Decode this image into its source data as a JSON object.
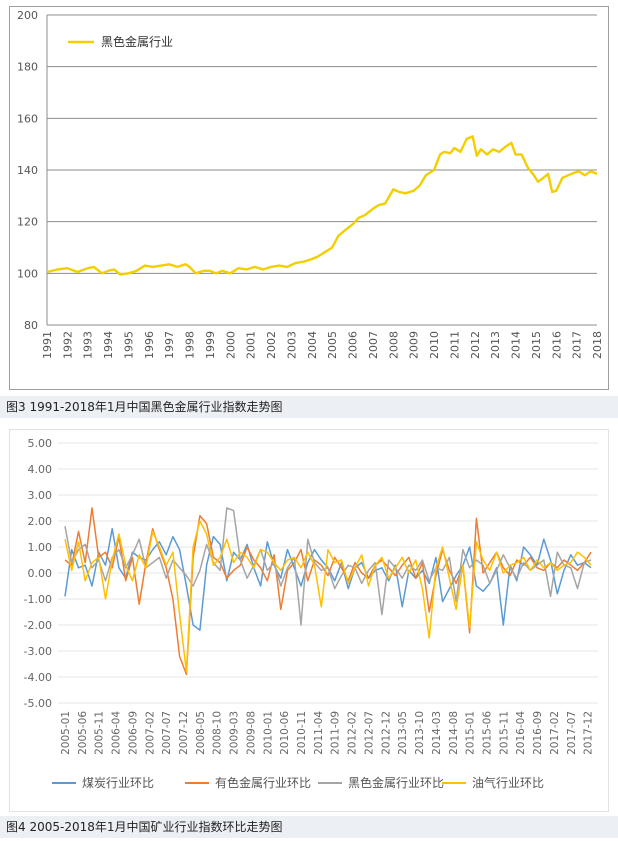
{
  "chart_data": [
    {
      "type": "line",
      "caption": "图3 1991-2018年1月中国黑色金属行业指数走势图",
      "legend": [
        "黑色金属行业"
      ],
      "legend_position": "top-left",
      "grid": true,
      "ylim": [
        80,
        200
      ],
      "yticks": [
        "80",
        "100",
        "120",
        "140",
        "160",
        "180",
        "200"
      ],
      "xticks": [
        "1991",
        "1992",
        "1993",
        "1994",
        "1995",
        "1996",
        "1997",
        "1998",
        "1999",
        "2000",
        "2001",
        "2002",
        "2003",
        "2004",
        "2005",
        "2006",
        "2007",
        "2008",
        "2009",
        "2010",
        "2011",
        "2012",
        "2013",
        "2014",
        "2015",
        "2016",
        "2017",
        "2018"
      ],
      "colors": {
        "series": "#f2cf00",
        "grid": "#8c8c8c"
      },
      "series": [
        {
          "name": "黑色金属行业",
          "x": [
            1991.0,
            1991.5,
            1992.0,
            1992.5,
            1993.0,
            1993.3,
            1993.7,
            1994.0,
            1994.3,
            1994.6,
            1995.0,
            1995.4,
            1995.8,
            1996.2,
            1996.6,
            1997.0,
            1997.4,
            1997.8,
            1998.0,
            1998.3,
            1998.7,
            1999.0,
            1999.3,
            1999.6,
            2000.0,
            2000.4,
            2000.8,
            2001.2,
            2001.6,
            2002.0,
            2002.4,
            2002.8,
            2003.2,
            2003.6,
            2004.0,
            2004.3,
            2004.6,
            2005.0,
            2005.3,
            2005.6,
            2006.0,
            2006.3,
            2006.6,
            2007.0,
            2007.3,
            2007.6,
            2008.0,
            2008.3,
            2008.6,
            2009.0,
            2009.3,
            2009.6,
            2010.0,
            2010.3,
            2010.5,
            2010.8,
            2011.0,
            2011.3,
            2011.6,
            2011.9,
            2012.1,
            2012.3,
            2012.6,
            2012.9,
            2013.2,
            2013.5,
            2013.8,
            2014.0,
            2014.3,
            2014.6,
            2014.9,
            2015.1,
            2015.3,
            2015.6,
            2015.8,
            2016.0,
            2016.3,
            2016.6,
            2016.9,
            2017.1,
            2017.4,
            2017.7,
            2018.0
          ],
          "values": [
            100.5,
            101.5,
            102,
            100.5,
            102,
            102.5,
            100,
            101,
            101.5,
            99.5,
            100,
            101,
            103,
            102.5,
            103,
            103.5,
            102.5,
            103.5,
            102.5,
            100,
            101,
            101,
            100,
            101,
            100,
            102,
            101.5,
            102.5,
            101.5,
            102.5,
            103,
            102.5,
            104,
            104.5,
            105.5,
            106.5,
            108,
            110,
            114.5,
            116.5,
            119,
            121.5,
            122.5,
            125,
            126.5,
            127,
            132.5,
            131.5,
            131,
            132,
            134,
            138,
            140,
            146,
            147,
            146.5,
            148.5,
            147,
            152,
            153,
            145.5,
            148,
            146,
            148,
            147,
            149,
            150.5,
            146,
            146,
            141,
            138,
            135.5,
            136.5,
            138.5,
            131.5,
            132,
            137,
            138,
            139,
            139.5,
            138,
            139.5,
            138.5
          ]
        }
      ]
    },
    {
      "type": "line",
      "caption": "图4 2005-2018年1月中国矿业行业指数环比走势图",
      "legend": [
        "煤炭行业环比",
        "有色金属行业环比",
        "黑色金属行业环比",
        "油气行业环比"
      ],
      "legend_position": "bottom",
      "grid": true,
      "ylim": [
        -5,
        5
      ],
      "yticks": [
        "5.00",
        "4.00",
        "3.00",
        "2.00",
        "1.00",
        "0.00",
        "-1.00",
        "-2.00",
        "-3.00",
        "-4.00",
        "-5.00"
      ],
      "xticks": [
        "2005-01",
        "2005-06",
        "2005-11",
        "2006-04",
        "2006-09",
        "2007-02",
        "2007-07",
        "2007-12",
        "2008-05",
        "2008-10",
        "2009-03",
        "2009-08",
        "2010-01",
        "2010-06",
        "2010-11",
        "2011-04",
        "2011-09",
        "2012-02",
        "2012-07",
        "2012-12",
        "2013-05",
        "2013-10",
        "2014-03",
        "2014-08",
        "2015-01",
        "2015-06",
        "2015-11",
        "2016-04",
        "2016-09",
        "2017-02",
        "2017-07",
        "2017-12"
      ],
      "colors": {
        "grid": "#e6e6e6",
        "series": [
          "#5b9bd5",
          "#ed7d31",
          "#a5a5a5",
          "#ffc000"
        ]
      },
      "series": [
        {
          "name": "煤炭行业环比",
          "x": [
            0,
            2,
            4,
            6,
            8,
            10,
            12,
            14,
            16,
            18,
            20,
            22,
            24,
            26,
            28,
            30,
            32,
            34,
            36,
            38,
            40,
            42,
            44,
            46,
            48,
            50,
            52,
            54,
            56,
            58,
            60,
            62,
            64,
            66,
            68,
            70,
            72,
            74,
            76,
            78,
            80,
            82,
            84,
            86,
            88,
            90,
            92,
            94,
            96,
            98,
            100,
            102,
            104,
            106,
            108,
            110,
            112,
            114,
            116,
            118,
            120,
            122,
            124,
            126,
            128,
            130,
            132,
            134,
            136,
            138,
            140,
            142,
            144,
            146,
            148,
            150,
            152,
            154,
            156
          ],
          "values": [
            -0.9,
            0.9,
            0.2,
            0.3,
            -0.5,
            0.8,
            0.3,
            1.7,
            0.2,
            -0.2,
            0.8,
            0.6,
            0.5,
            0.9,
            1.2,
            0.7,
            1.4,
            0.9,
            -0.5,
            -2.0,
            -2.2,
            0.3,
            1.4,
            1.1,
            -0.3,
            0.8,
            0.5,
            1.1,
            0.2,
            -0.5,
            1.2,
            0.3,
            -0.2,
            0.9,
            0.2,
            -0.5,
            0.4,
            0.9,
            0.5,
            0.2,
            -0.3,
            0.4,
            -0.6,
            0.2,
            0.4,
            -0.2,
            0.1,
            0.2,
            -0.3,
            0.3,
            -1.3,
            0.1,
            -0.2,
            0.1,
            -0.4,
            0.6,
            -1.1,
            -0.6,
            -0.1,
            0.3,
            1.0,
            -0.5,
            -0.7,
            -0.4,
            0.2,
            -2.0,
            0.3,
            -0.3,
            1.0,
            0.7,
            0.3,
            1.3,
            0.5,
            -0.8,
            0.1,
            0.7,
            0.3,
            0.4,
            0.2
          ]
        },
        {
          "name": "有色金属行业环比",
          "x": [
            0,
            2,
            4,
            6,
            8,
            10,
            12,
            14,
            16,
            18,
            20,
            22,
            24,
            26,
            28,
            30,
            32,
            34,
            36,
            38,
            40,
            42,
            44,
            46,
            48,
            50,
            52,
            54,
            56,
            58,
            60,
            62,
            64,
            66,
            68,
            70,
            72,
            74,
            76,
            78,
            80,
            82,
            84,
            86,
            88,
            90,
            92,
            94,
            96,
            98,
            100,
            102,
            104,
            106,
            108,
            110,
            112,
            114,
            116,
            118,
            120,
            122,
            124,
            126,
            128,
            130,
            132,
            134,
            136,
            138,
            140,
            142,
            144,
            146,
            148,
            150,
            152,
            154,
            156
          ],
          "values": [
            0.5,
            0.3,
            1.6,
            0.4,
            2.5,
            0.6,
            0.8,
            0.2,
            1.4,
            -0.3,
            0.6,
            -1.2,
            0.4,
            1.7,
            0.9,
            0.2,
            -1.0,
            -3.2,
            -3.9,
            0.6,
            2.2,
            1.9,
            0.6,
            0.4,
            -0.2,
            0.1,
            0.3,
            1.0,
            0.5,
            0.2,
            -0.3,
            0.7,
            -1.4,
            0.1,
            0.4,
            0.9,
            -0.3,
            0.5,
            0.3,
            -0.1,
            0.6,
            0.2,
            -0.3,
            0.4,
            0.0,
            -0.2,
            0.3,
            0.5,
            0.2,
            -0.1,
            0.3,
            0.6,
            -0.2,
            0.4,
            -1.5,
            -0.1,
            0.9,
            0.1,
            -0.4,
            0.3,
            -2.3,
            2.1,
            0.0,
            0.4,
            0.8,
            0.2,
            -0.1,
            0.5,
            0.3,
            0.6,
            0.2,
            0.1,
            0.4,
            0.2,
            0.5,
            0.3,
            0.1,
            0.4,
            0.8
          ]
        },
        {
          "name": "黑色金属行业环比",
          "x": [
            0,
            2,
            4,
            6,
            8,
            10,
            12,
            14,
            16,
            18,
            20,
            22,
            24,
            26,
            28,
            30,
            32,
            34,
            36,
            38,
            40,
            42,
            44,
            46,
            48,
            50,
            52,
            54,
            56,
            58,
            60,
            62,
            64,
            66,
            68,
            70,
            72,
            74,
            76,
            78,
            80,
            82,
            84,
            86,
            88,
            90,
            92,
            94,
            96,
            98,
            100,
            102,
            104,
            106,
            108,
            110,
            112,
            114,
            116,
            118,
            120,
            122,
            124,
            126,
            128,
            130,
            132,
            134,
            136,
            138,
            140,
            142,
            144,
            146,
            148,
            150,
            152,
            154,
            156
          ],
          "values": [
            1.8,
            0.4,
            0.9,
            1.1,
            0.2,
            0.5,
            -0.3,
            0.6,
            0.9,
            0.2,
            0.7,
            1.3,
            0.2,
            0.4,
            0.6,
            -0.2,
            0.5,
            0.2,
            -0.1,
            -0.5,
            0.1,
            1.1,
            0.4,
            0.1,
            2.5,
            2.4,
            0.5,
            -0.2,
            0.3,
            0.9,
            0.1,
            0.4,
            -0.5,
            0.2,
            0.6,
            -2.0,
            1.3,
            0.4,
            0.1,
            0.2,
            -0.6,
            -0.1,
            0.3,
            0.2,
            -0.4,
            0.1,
            0.4,
            -1.6,
            0.5,
            0.2,
            -0.2,
            0.3,
            0.1,
            0.5,
            -0.3,
            0.2,
            0.1,
            0.6,
            -1.1,
            0.9,
            0.2,
            0.5,
            0.3,
            -0.4,
            0.1,
            0.7,
            0.2,
            -0.2,
            0.4,
            0.1,
            0.3,
            0.5,
            -0.9,
            0.8,
            0.3,
            0.2,
            -0.6,
            0.4,
            0.5
          ]
        },
        {
          "name": "油气行业环比",
          "x": [
            0,
            2,
            4,
            6,
            8,
            10,
            12,
            14,
            16,
            18,
            20,
            22,
            24,
            26,
            28,
            30,
            32,
            34,
            36,
            38,
            40,
            42,
            44,
            46,
            48,
            50,
            52,
            54,
            56,
            58,
            60,
            62,
            64,
            66,
            68,
            70,
            72,
            74,
            76,
            78,
            80,
            82,
            84,
            86,
            88,
            90,
            92,
            94,
            96,
            98,
            100,
            102,
            104,
            106,
            108,
            110,
            112,
            114,
            116,
            118,
            120,
            122,
            124,
            126,
            128,
            130,
            132,
            134,
            136,
            138,
            140,
            142,
            144,
            146,
            148,
            150,
            152,
            154,
            156
          ],
          "values": [
            1.3,
            0.1,
            1.2,
            -0.3,
            0.4,
            0.6,
            -1.0,
            0.5,
            1.5,
            0.3,
            -0.3,
            0.7,
            0.2,
            1.6,
            1.0,
            0.3,
            0.8,
            -1.6,
            -3.8,
            1.0,
            2.0,
            1.5,
            0.3,
            0.6,
            1.3,
            0.4,
            0.8,
            0.6,
            0.2,
            0.9,
            0.8,
            0.4,
            0.1,
            0.5,
            0.6,
            0.2,
            0.8,
            0.3,
            -1.3,
            0.9,
            0.4,
            0.5,
            -0.4,
            0.2,
            0.7,
            -0.5,
            0.3,
            0.6,
            -0.2,
            0.2,
            0.6,
            0.0,
            0.5,
            -0.6,
            -2.5,
            0.2,
            1.0,
            -0.2,
            -1.4,
            0.3,
            -2.1,
            1.2,
            0.5,
            0.1,
            0.8,
            0.0,
            0.3,
            0.4,
            0.6,
            0.1,
            0.5,
            0.2,
            0.4,
            0.1,
            0.3,
            0.4,
            0.8,
            0.6,
            0.3
          ]
        }
      ]
    }
  ]
}
